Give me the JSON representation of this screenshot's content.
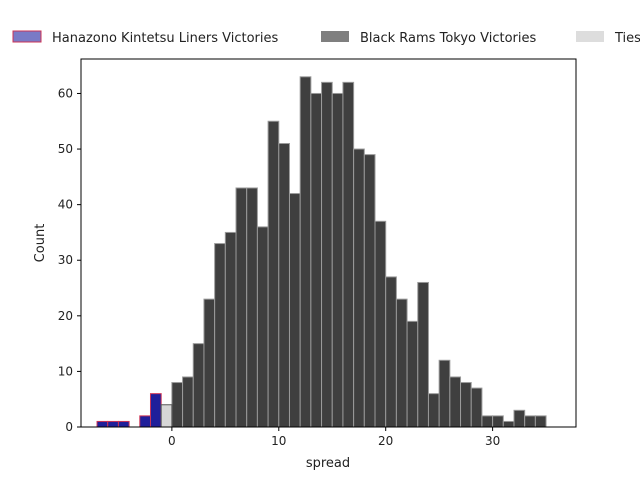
{
  "chart_data": {
    "type": "bar",
    "xlabel": "spread",
    "ylabel": "Count",
    "xlim": [
      -8.5,
      37.8
    ],
    "ylim": [
      0,
      66.2
    ],
    "xticks": [
      0,
      10,
      20,
      30
    ],
    "yticks": [
      0,
      10,
      20,
      30,
      40,
      50,
      60
    ],
    "legend_position": "top",
    "bin_width": 1,
    "series": [
      {
        "name": "Hanazono Kintetsu Liners Victories",
        "color": "#1f1f9a",
        "edge": "#cc3355",
        "legend_color": "#7a7ac6",
        "bins": [
          {
            "x": -6.5,
            "count": 1
          },
          {
            "x": -5.5,
            "count": 1
          },
          {
            "x": -4.5,
            "count": 1
          },
          {
            "x": -2.5,
            "count": 2
          },
          {
            "x": -1.5,
            "count": 6
          }
        ]
      },
      {
        "name": "Black Rams Tokyo Victories",
        "color": "#3f3f3f",
        "edge": "#9a9a9a",
        "legend_color": "#7f7f7f",
        "bins": [
          {
            "x": 0.5,
            "count": 8
          },
          {
            "x": 1.5,
            "count": 9
          },
          {
            "x": 2.5,
            "count": 15
          },
          {
            "x": 3.5,
            "count": 23
          },
          {
            "x": 4.5,
            "count": 33
          },
          {
            "x": 5.5,
            "count": 35
          },
          {
            "x": 6.5,
            "count": 43
          },
          {
            "x": 7.5,
            "count": 43
          },
          {
            "x": 8.5,
            "count": 36
          },
          {
            "x": 9.5,
            "count": 55
          },
          {
            "x": 10.5,
            "count": 51
          },
          {
            "x": 11.5,
            "count": 42
          },
          {
            "x": 12.5,
            "count": 63
          },
          {
            "x": 13.5,
            "count": 60
          },
          {
            "x": 14.5,
            "count": 62
          },
          {
            "x": 15.5,
            "count": 60
          },
          {
            "x": 16.5,
            "count": 62
          },
          {
            "x": 17.5,
            "count": 50
          },
          {
            "x": 18.5,
            "count": 49
          },
          {
            "x": 19.5,
            "count": 37
          },
          {
            "x": 20.5,
            "count": 27
          },
          {
            "x": 21.5,
            "count": 23
          },
          {
            "x": 22.5,
            "count": 19
          },
          {
            "x": 23.5,
            "count": 26
          },
          {
            "x": 24.5,
            "count": 6
          },
          {
            "x": 25.5,
            "count": 12
          },
          {
            "x": 26.5,
            "count": 9
          },
          {
            "x": 27.5,
            "count": 8
          },
          {
            "x": 28.5,
            "count": 7
          },
          {
            "x": 29.5,
            "count": 2
          },
          {
            "x": 30.5,
            "count": 2
          },
          {
            "x": 31.5,
            "count": 1
          },
          {
            "x": 32.5,
            "count": 3
          },
          {
            "x": 33.5,
            "count": 2
          },
          {
            "x": 34.5,
            "count": 2
          }
        ]
      },
      {
        "name": "Ties",
        "color": "#d6d6d6",
        "edge": "#555555",
        "legend_color": "#dddddd",
        "bins": [
          {
            "x": -0.5,
            "count": 4
          }
        ]
      }
    ]
  }
}
